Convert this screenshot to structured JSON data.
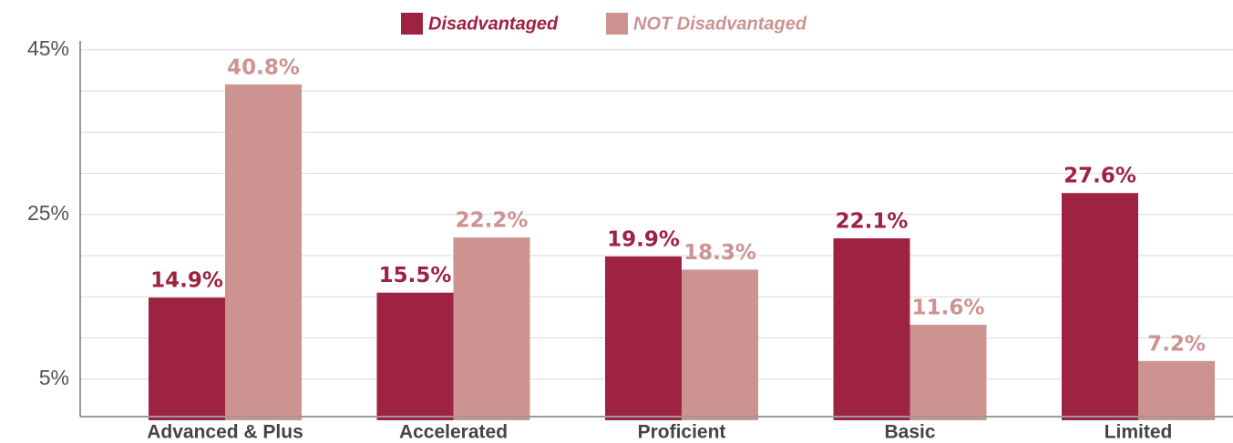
{
  "chart_data": {
    "type": "bar",
    "categories": [
      "Advanced & Plus",
      "Accelerated",
      "Proficient",
      "Basic",
      "Limited"
    ],
    "series": [
      {
        "name": "Disadvantaged",
        "color": "#9e2241",
        "values": [
          14.9,
          15.5,
          19.9,
          22.1,
          27.6
        ],
        "value_labels": [
          "14.9%",
          "15.5%",
          "19.9%",
          "22.1%",
          "27.6%"
        ]
      },
      {
        "name": "NOT Disadvantaged",
        "color": "#cc9391",
        "values": [
          40.8,
          22.2,
          18.3,
          11.6,
          7.2
        ],
        "value_labels": [
          "40.8%",
          "22.2%",
          "18.3%",
          "11.6%",
          "7.2%"
        ]
      }
    ],
    "ylim": [
      0,
      45
    ],
    "yticks": [
      {
        "value": 5,
        "label": "5%"
      },
      {
        "value": 25,
        "label": "25%"
      },
      {
        "value": 45,
        "label": "45%"
      }
    ],
    "grid_ticks": [
      5,
      10,
      15,
      20,
      25,
      30,
      35,
      40,
      45
    ],
    "grid": true,
    "legend": "top"
  }
}
